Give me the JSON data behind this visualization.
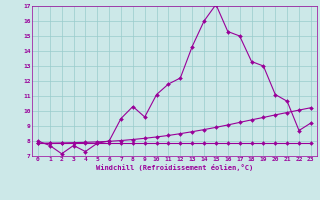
{
  "xlabel": "Windchill (Refroidissement éolien,°C)",
  "bg_color": "#cce8e8",
  "line_color": "#990099",
  "x_values": [
    0,
    1,
    2,
    3,
    4,
    5,
    6,
    7,
    8,
    9,
    10,
    11,
    12,
    13,
    14,
    15,
    16,
    17,
    18,
    19,
    20,
    21,
    22,
    23
  ],
  "series1": [
    8.0,
    7.7,
    7.15,
    7.7,
    7.3,
    7.85,
    8.0,
    9.5,
    10.3,
    9.6,
    11.1,
    11.8,
    12.2,
    14.3,
    16.0,
    17.1,
    15.3,
    15.0,
    13.3,
    13.0,
    11.1,
    10.65,
    8.7,
    9.2
  ],
  "series2": [
    7.85,
    7.85,
    7.85,
    7.85,
    7.85,
    7.85,
    7.85,
    7.85,
    7.85,
    7.85,
    7.85,
    7.85,
    7.85,
    7.85,
    7.85,
    7.85,
    7.85,
    7.85,
    7.85,
    7.85,
    7.85,
    7.85,
    7.85,
    7.85
  ],
  "series3": [
    7.85,
    7.86,
    7.87,
    7.89,
    7.91,
    7.94,
    7.98,
    8.03,
    8.1,
    8.18,
    8.27,
    8.37,
    8.49,
    8.62,
    8.76,
    8.91,
    9.07,
    9.24,
    9.41,
    9.57,
    9.74,
    9.9,
    10.06,
    10.22
  ],
  "ylim": [
    7,
    17
  ],
  "xlim": [
    -0.5,
    23.5
  ],
  "yticks": [
    7,
    8,
    9,
    10,
    11,
    12,
    13,
    14,
    15,
    16,
    17
  ],
  "xticks": [
    0,
    1,
    2,
    3,
    4,
    5,
    6,
    7,
    8,
    9,
    10,
    11,
    12,
    13,
    14,
    15,
    16,
    17,
    18,
    19,
    20,
    21,
    22,
    23
  ],
  "grid_color": "#99cccc",
  "marker": "D",
  "marker_size": 2,
  "line_width": 0.8,
  "tick_fontsize": 4.5,
  "xlabel_fontsize": 5.0
}
